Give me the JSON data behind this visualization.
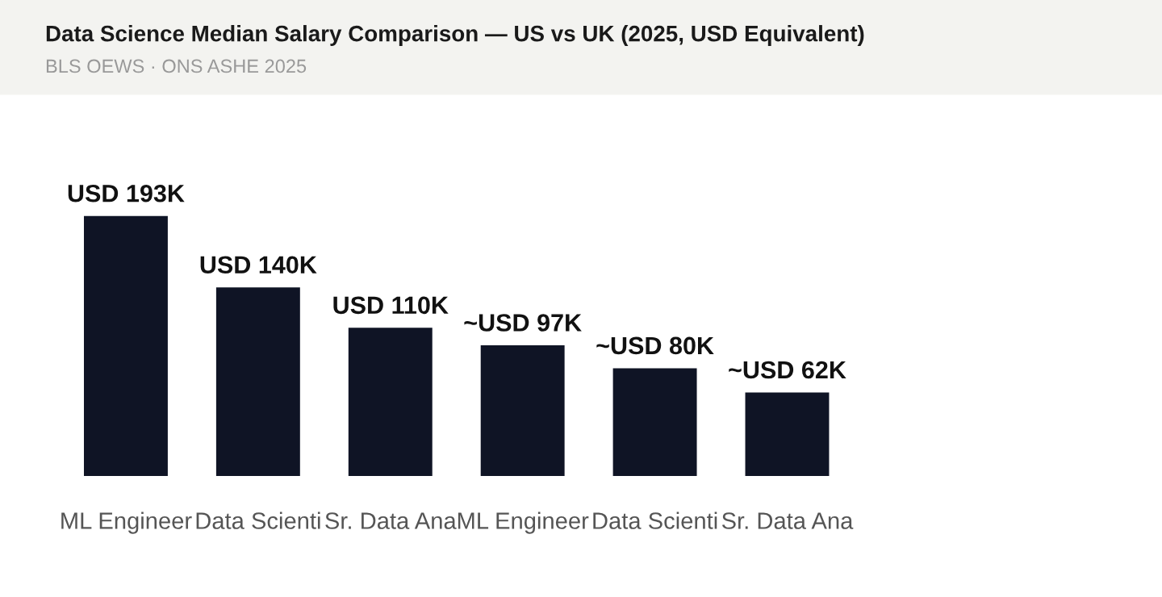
{
  "chart_data": {
    "type": "bar",
    "title": "Data Science Median Salary Comparison — US vs UK (2025, USD Equivalent)",
    "subtitle": "BLS OEWS · ONS ASHE 2025",
    "categories": [
      "ML Engineer",
      "Data Scienti",
      "Sr. Data Ana",
      "ML Engineer",
      "Data Scienti",
      "Sr. Data Ana"
    ],
    "values": [
      193000,
      140000,
      110000,
      97000,
      80000,
      62000
    ],
    "value_labels": [
      "USD 193K",
      "USD 140K",
      "USD 110K",
      "~USD 97K",
      "~USD 80K",
      "~USD 62K"
    ],
    "color": "#0f1425",
    "grid": false,
    "legend": false
  }
}
